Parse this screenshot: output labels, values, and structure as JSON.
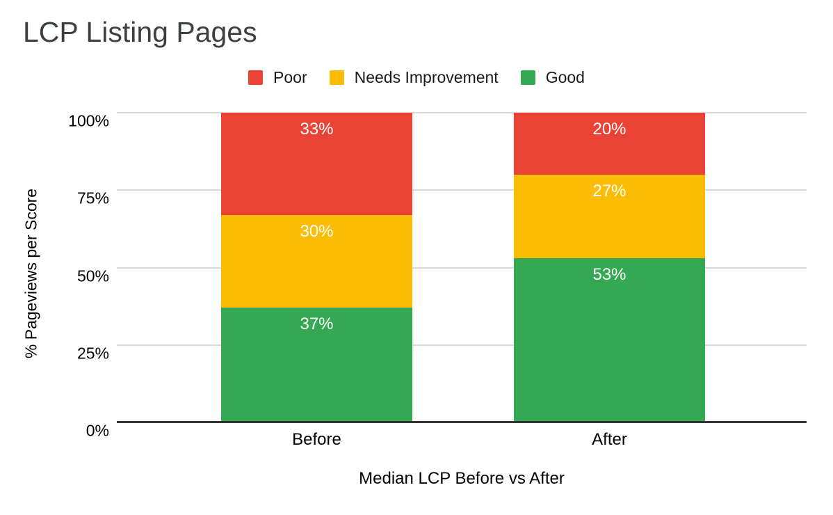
{
  "chart_data": {
    "type": "bar",
    "stacked": true,
    "title": "LCP Listing Pages",
    "xlabel": "Median LCP Before vs After",
    "ylabel": "% Pageviews per Score",
    "categories": [
      "Before",
      "After"
    ],
    "series": [
      {
        "name": "Good",
        "color": "#34A853",
        "values": [
          37,
          53
        ]
      },
      {
        "name": "Needs Improvement",
        "color": "#FBBC04",
        "values": [
          30,
          27
        ]
      },
      {
        "name": "Poor",
        "color": "#EA4335",
        "values": [
          33,
          20
        ]
      }
    ],
    "value_label_format": "{v}%",
    "y_ticks": [
      0,
      25,
      50,
      75,
      100
    ],
    "y_tick_format": "{v}%",
    "ylim": [
      0,
      100
    ],
    "grid": true,
    "legend_position": "top",
    "legend_order": [
      "Poor",
      "Needs Improvement",
      "Good"
    ]
  },
  "colors": {
    "poor": "#EA4335",
    "needs_improvement": "#FBBC04",
    "good": "#34A853",
    "gridline": "#d9d9d9",
    "axis_line": "#333333",
    "title_text": "#3c4043",
    "tick_text": "#000000",
    "bar_label_text": "#ffffff",
    "background": "#ffffff"
  }
}
